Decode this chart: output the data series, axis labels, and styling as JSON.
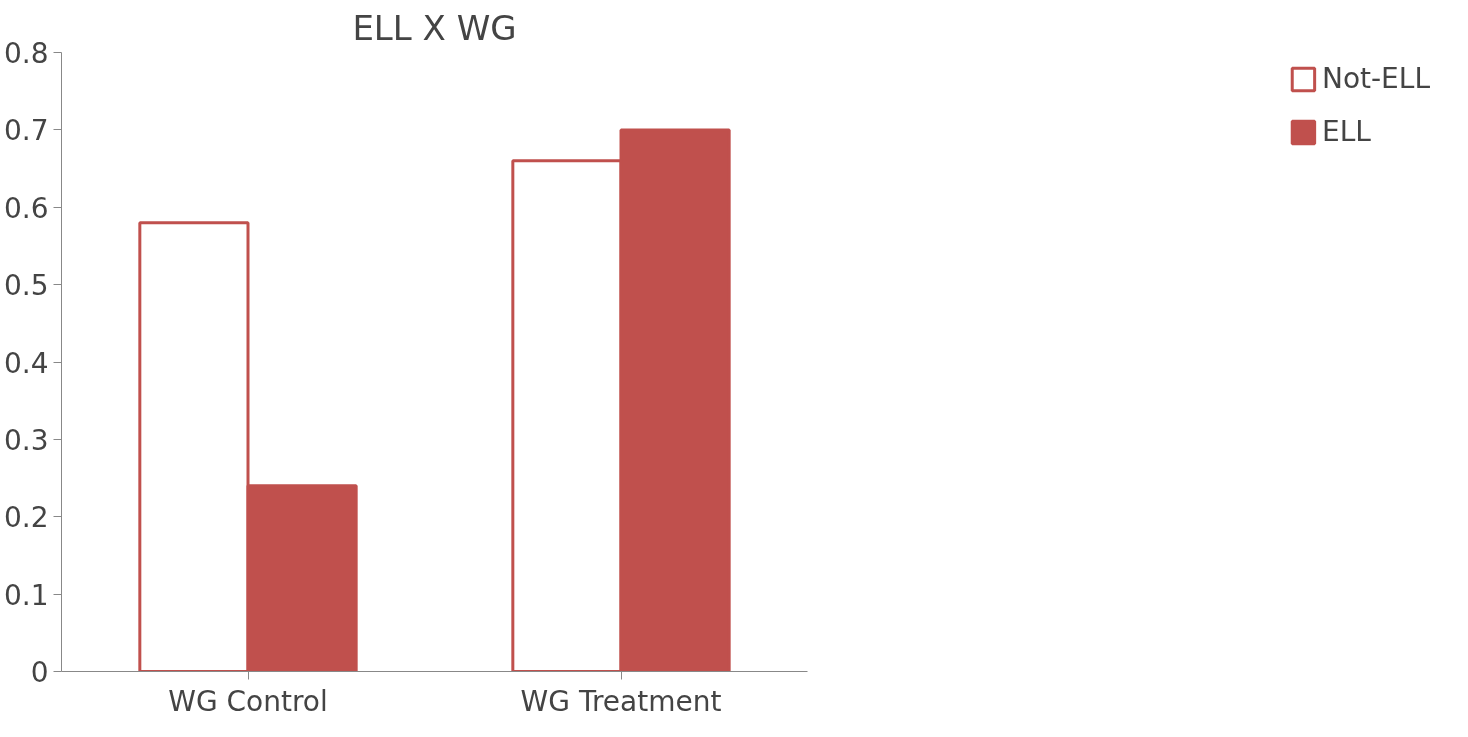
{
  "chart_data": {
    "type": "bar",
    "title": "ELL X WG",
    "categories": [
      "WG Control",
      "WG Treatment"
    ],
    "series": [
      {
        "name": "Not-ELL",
        "color": "#ffffff",
        "values": [
          0.58,
          0.66
        ]
      },
      {
        "name": "ELL",
        "color": "#c0504d",
        "values": [
          0.24,
          0.7
        ]
      }
    ],
    "ylim": [
      0,
      0.8
    ],
    "yticks": [
      0,
      0.1,
      0.2,
      0.3,
      0.4,
      0.5,
      0.6,
      0.7,
      0.8
    ],
    "grid": false,
    "legend": "right"
  }
}
